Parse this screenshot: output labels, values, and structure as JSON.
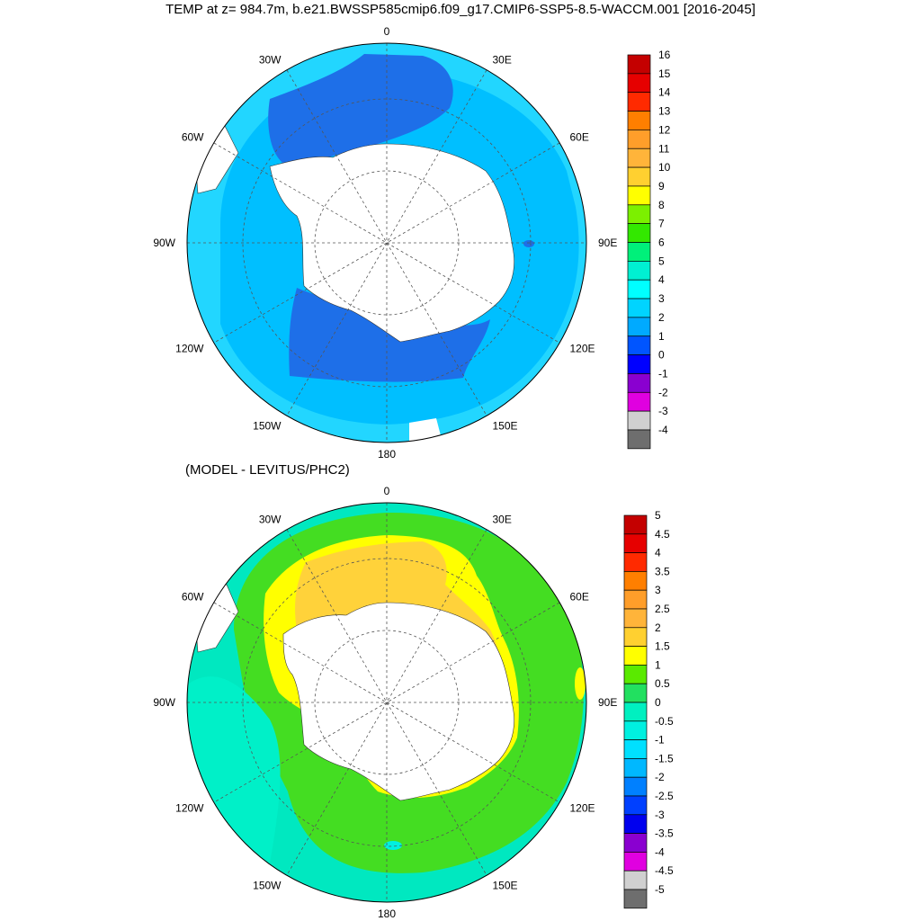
{
  "top_panel": {
    "title": "TEMP at z= 984.7m, b.e21.BWSSP585cmip6.f09_g17.CMIP6-SSP5-8.5-WACCM.001 [2016-2045]",
    "lon_labels": [
      "0",
      "30E",
      "60E",
      "90E",
      "120E",
      "150E",
      "180",
      "150W",
      "120W",
      "90W",
      "60W",
      "30W"
    ],
    "colorbar": {
      "labels": [
        "16",
        "15",
        "14",
        "13",
        "12",
        "11",
        "10",
        "9",
        "8",
        "7",
        "6",
        "5",
        "4",
        "3",
        "2",
        "1",
        "0",
        "-1",
        "-2",
        "-3",
        "-4"
      ],
      "colors": [
        "#c40000",
        "#e60000",
        "#ff2a00",
        "#ff7f00",
        "#ff9e2a",
        "#ffb43a",
        "#ffd030",
        "#ffff00",
        "#7cf000",
        "#33e800",
        "#00f07a",
        "#00f0d2",
        "#00ffff",
        "#00d4ff",
        "#00aaff",
        "#0055ff",
        "#0000ff",
        "#8a00d0",
        "#e000e0",
        "#d0d0d0",
        "#6e6e6e"
      ]
    }
  },
  "bottom_panel": {
    "subtitle": "(MODEL - LEVITUS/PHC2)",
    "lon_labels": [
      "0",
      "30E",
      "60E",
      "90E",
      "120E",
      "150E",
      "180",
      "150W",
      "120W",
      "90W",
      "60W",
      "30W"
    ],
    "colorbar": {
      "labels": [
        "5",
        "4.5",
        "4",
        "3.5",
        "3",
        "2.5",
        "2",
        "1.5",
        "1",
        "0.5",
        "0",
        "-0.5",
        "-1",
        "-1.5",
        "-2",
        "-2.5",
        "-3",
        "-3.5",
        "-4",
        "-4.5",
        "-5"
      ],
      "colors": [
        "#c40000",
        "#e60000",
        "#ff2a00",
        "#ff7f00",
        "#ff9e2a",
        "#ffb43a",
        "#ffd030",
        "#ffff00",
        "#5aea00",
        "#22e060",
        "#00f0c0",
        "#00f0e0",
        "#00e0ff",
        "#00b8ff",
        "#0080ff",
        "#0040ff",
        "#0000ee",
        "#8a00d0",
        "#e000e0",
        "#d0d0d0",
        "#6e6e6e"
      ]
    }
  },
  "colors": {
    "top_warm": "#00bfff",
    "top_mid": "#1e90ff",
    "top_cold": "#1f6fe0",
    "top_outer": "#22d6ff",
    "bot_green": "#44dd22",
    "bot_yellow": "#ffff00",
    "bot_orange": "#ffd23a",
    "bot_cyan": "#00f0c8",
    "bot_teal": "#00e0b0",
    "land": "#ffffff"
  }
}
